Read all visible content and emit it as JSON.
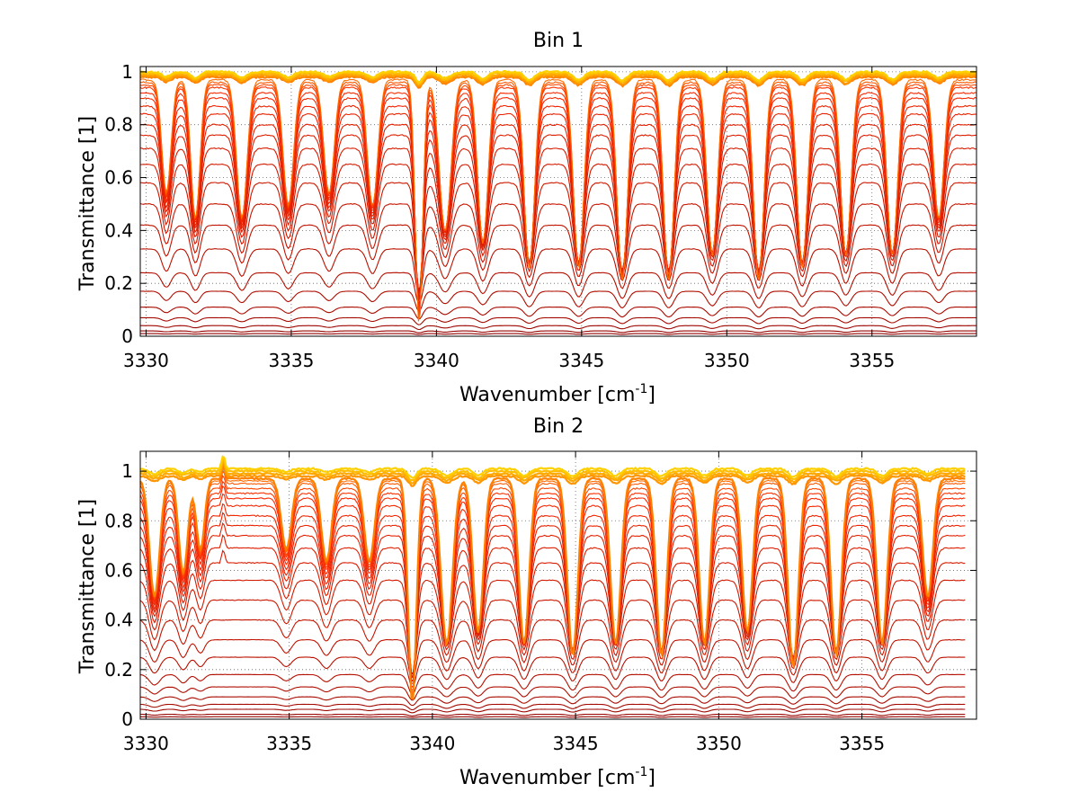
{
  "chart_data": [
    {
      "type": "line",
      "title": "Bin 1",
      "xlabel": "Wavenumber [cm",
      "xlabel_sup": "-1",
      "xlabel_close": "]",
      "ylabel": "Transmittance [1]",
      "xlim": [
        3329.8,
        3358.6
      ],
      "ylim": [
        0,
        1.02
      ],
      "xticks": [
        3330,
        3335,
        3340,
        3345,
        3350,
        3355
      ],
      "yticks": [
        0,
        0.2,
        0.4,
        0.6,
        0.8,
        1
      ],
      "xtick_labels": [
        "3330",
        "3335",
        "3340",
        "3345",
        "3350",
        "3355"
      ],
      "ytick_labels": [
        "0",
        "0.2",
        "0.4",
        "0.6",
        "0.8",
        "1"
      ],
      "grid": true,
      "baseline_levels": [
        0.0,
        0.01,
        0.02,
        0.04,
        0.07,
        0.11,
        0.17,
        0.24,
        0.33,
        0.42,
        0.5,
        0.58,
        0.65,
        0.71,
        0.76,
        0.8,
        0.84,
        0.87,
        0.9,
        0.92,
        0.94,
        0.95,
        0.96,
        0.97,
        0.98,
        0.985,
        0.99,
        0.995,
        1.0
      ],
      "absorption_lines": [
        {
          "x": 3330.7,
          "depth": 0.45,
          "width": 0.22
        },
        {
          "x": 3331.7,
          "depth": 0.55,
          "width": 0.22
        },
        {
          "x": 3333.3,
          "depth": 0.55,
          "width": 0.25
        },
        {
          "x": 3334.9,
          "depth": 0.5,
          "width": 0.25
        },
        {
          "x": 3336.3,
          "depth": 0.45,
          "width": 0.25
        },
        {
          "x": 3337.8,
          "depth": 0.5,
          "width": 0.25
        },
        {
          "x": 3339.4,
          "depth": 0.97,
          "width": 0.18
        },
        {
          "x": 3340.3,
          "depth": 0.6,
          "width": 0.28
        },
        {
          "x": 3341.6,
          "depth": 0.65,
          "width": 0.25
        },
        {
          "x": 3343.2,
          "depth": 0.75,
          "width": 0.25
        },
        {
          "x": 3344.9,
          "depth": 0.75,
          "width": 0.25
        },
        {
          "x": 3346.4,
          "depth": 0.8,
          "width": 0.25
        },
        {
          "x": 3348.0,
          "depth": 0.8,
          "width": 0.25
        },
        {
          "x": 3349.5,
          "depth": 0.7,
          "width": 0.25
        },
        {
          "x": 3351.1,
          "depth": 0.8,
          "width": 0.25
        },
        {
          "x": 3352.6,
          "depth": 0.75,
          "width": 0.25
        },
        {
          "x": 3354.1,
          "depth": 0.7,
          "width": 0.25
        },
        {
          "x": 3355.7,
          "depth": 0.7,
          "width": 0.25
        },
        {
          "x": 3357.3,
          "depth": 0.55,
          "width": 0.25
        }
      ],
      "color_low": "#8B0000",
      "color_mid": "#FF2A00",
      "color_high": "#FFD000"
    },
    {
      "type": "line",
      "title": "Bin 2",
      "xlabel": "Wavenumber [cm",
      "xlabel_sup": "-1",
      "xlabel_close": "]",
      "ylabel": "Transmittance [1]",
      "xlim": [
        3329.8,
        3359.0
      ],
      "ylim": [
        0,
        1.08
      ],
      "xticks": [
        3330,
        3335,
        3340,
        3345,
        3350,
        3355
      ],
      "yticks": [
        0,
        0.2,
        0.4,
        0.6,
        0.8,
        1
      ],
      "xtick_labels": [
        "3330",
        "3335",
        "3340",
        "3345",
        "3350",
        "3355"
      ],
      "ytick_labels": [
        "0",
        "0.2",
        "0.4",
        "0.6",
        "0.8",
        "1"
      ],
      "grid": true,
      "baseline_levels": [
        0.0,
        0.01,
        0.02,
        0.04,
        0.06,
        0.09,
        0.13,
        0.18,
        0.25,
        0.32,
        0.4,
        0.48,
        0.56,
        0.63,
        0.69,
        0.74,
        0.78,
        0.82,
        0.86,
        0.89,
        0.91,
        0.93,
        0.95,
        0.96,
        0.97,
        0.98,
        0.99,
        1.0,
        1.01
      ],
      "absorption_lines": [
        {
          "x": 3330.3,
          "depth": 0.5,
          "width": 0.25
        },
        {
          "x": 3331.3,
          "depth": 0.4,
          "width": 0.22
        },
        {
          "x": 3331.9,
          "depth": 0.3,
          "width": 0.2
        },
        {
          "x": 3334.9,
          "depth": 0.3,
          "width": 0.25
        },
        {
          "x": 3336.3,
          "depth": 0.35,
          "width": 0.25
        },
        {
          "x": 3337.8,
          "depth": 0.35,
          "width": 0.25
        },
        {
          "x": 3339.3,
          "depth": 0.95,
          "width": 0.2
        },
        {
          "x": 3340.5,
          "depth": 0.7,
          "width": 0.28
        },
        {
          "x": 3341.6,
          "depth": 0.65,
          "width": 0.25
        },
        {
          "x": 3343.2,
          "depth": 0.7,
          "width": 0.25
        },
        {
          "x": 3344.9,
          "depth": 0.75,
          "width": 0.25
        },
        {
          "x": 3346.4,
          "depth": 0.7,
          "width": 0.25
        },
        {
          "x": 3348.0,
          "depth": 0.75,
          "width": 0.25
        },
        {
          "x": 3349.5,
          "depth": 0.7,
          "width": 0.25
        },
        {
          "x": 3351.0,
          "depth": 0.65,
          "width": 0.25
        },
        {
          "x": 3352.6,
          "depth": 0.8,
          "width": 0.25
        },
        {
          "x": 3354.1,
          "depth": 0.75,
          "width": 0.25
        },
        {
          "x": 3355.7,
          "depth": 0.7,
          "width": 0.25
        },
        {
          "x": 3357.3,
          "depth": 0.5,
          "width": 0.25
        }
      ],
      "spike": {
        "x": 3332.7,
        "height": 0.06
      },
      "series_end_x": 3358.6,
      "color_low": "#8B0000",
      "color_mid": "#FF2A00",
      "color_high": "#FFD000"
    }
  ]
}
